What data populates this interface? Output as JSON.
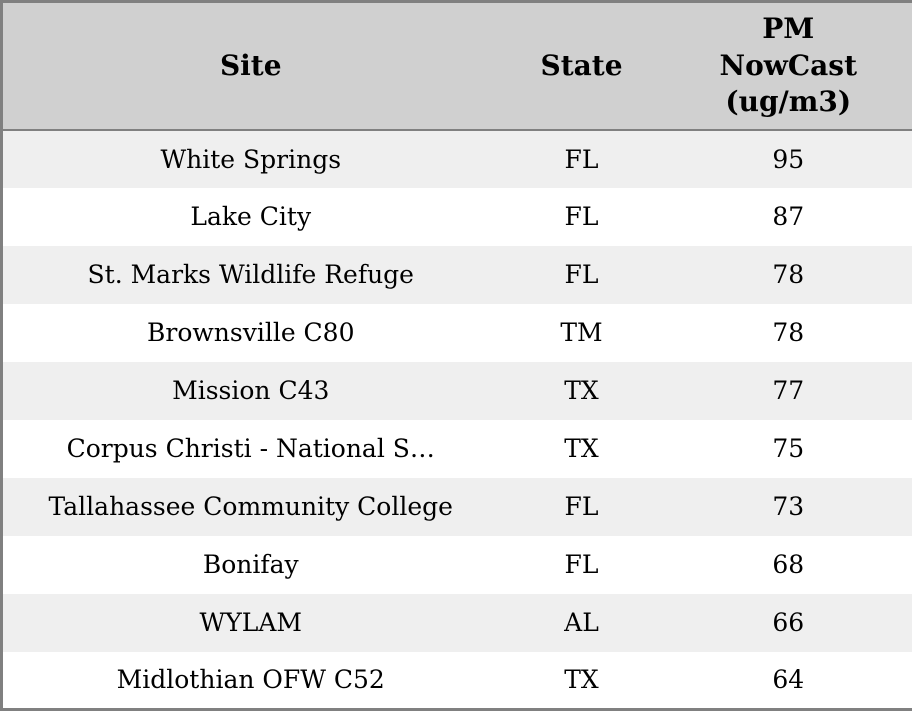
{
  "colors": {
    "border": "#808080",
    "header_bg": "#d0d0d0",
    "row_alt_bg": "#efefef",
    "row_bg": "#ffffff",
    "text": "#000000"
  },
  "table": {
    "columns": [
      {
        "label": "Site"
      },
      {
        "label": "State"
      },
      {
        "label": "PM\nNowCast\n(ug/m3)"
      }
    ],
    "rows": [
      {
        "site": "White Springs",
        "state": "FL",
        "pm_nowcast": "95"
      },
      {
        "site": "Lake City",
        "state": "FL",
        "pm_nowcast": "87"
      },
      {
        "site": "St. Marks Wildlife Refuge",
        "state": "FL",
        "pm_nowcast": "78"
      },
      {
        "site": "Brownsville C80",
        "state": "TM",
        "pm_nowcast": "78"
      },
      {
        "site": "Mission C43",
        "state": "TX",
        "pm_nowcast": "77"
      },
      {
        "site": "Corpus Christi - National S…",
        "state": "TX",
        "pm_nowcast": "75"
      },
      {
        "site": "Tallahassee Community College",
        "state": "FL",
        "pm_nowcast": "73"
      },
      {
        "site": "Bonifay",
        "state": "FL",
        "pm_nowcast": "68"
      },
      {
        "site": "WYLAM",
        "state": "AL",
        "pm_nowcast": "66"
      },
      {
        "site": "Midlothian OFW C52",
        "state": "TX",
        "pm_nowcast": "64"
      }
    ]
  }
}
